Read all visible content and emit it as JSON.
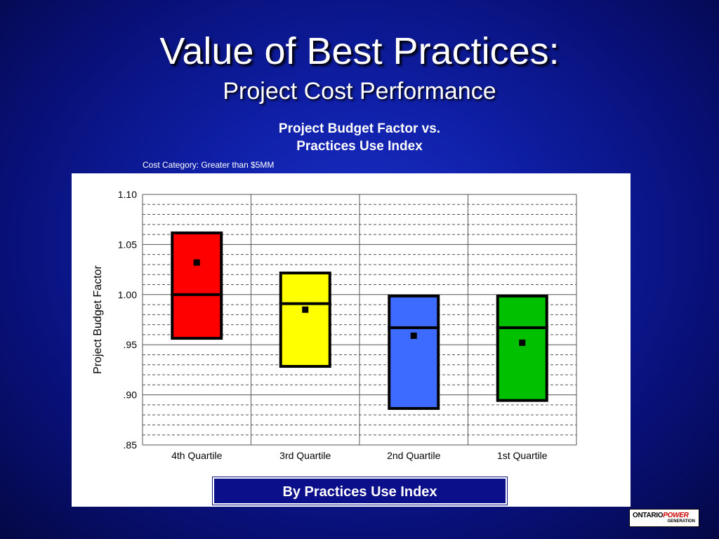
{
  "slide": {
    "title": "Value of Best Practices:",
    "subtitle": "Project Cost Performance",
    "chart_title_line1": "Project Budget Factor vs.",
    "chart_title_line2": "Practices Use Index",
    "cost_category": "Cost Category: Greater than $5MM",
    "xaxis_banner": "By Practices Use Index",
    "logo": {
      "word1": "ONTARIO",
      "word2": "POWER",
      "word3": "GENERATION",
      "color_power": "#cc0000"
    }
  },
  "chart_data": {
    "type": "boxplot",
    "title": "Project Budget Factor vs. Practices Use Index",
    "subtitle": "Cost Category: Greater than $5MM",
    "xlabel": "By Practices Use Index",
    "ylabel": "Project Budget Factor",
    "ylim": [
      0.85,
      1.1
    ],
    "yticks": [
      {
        "value": 1.1,
        "label": "1.10"
      },
      {
        "value": 1.05,
        "label": "1.05"
      },
      {
        "value": 1.0,
        "label": "1.00"
      },
      {
        "value": 0.95,
        "label": ".95"
      },
      {
        "value": 0.9,
        "label": ".90"
      },
      {
        "value": 0.85,
        "label": ".85"
      }
    ],
    "minor_grid_step": 0.01,
    "grid": true,
    "categories": [
      "4th Quartile",
      "3rd Quartile",
      "2nd Quartile",
      "1st Quartile"
    ],
    "boxes": [
      {
        "category": "4th Quartile",
        "low": 0.955,
        "high": 1.063,
        "median": 1.0,
        "mean": 1.032,
        "color": "#ff0000"
      },
      {
        "category": "3rd Quartile",
        "low": 0.927,
        "high": 1.023,
        "median": 0.991,
        "mean": 0.985,
        "color": "#ffff00"
      },
      {
        "category": "2nd Quartile",
        "low": 0.885,
        "high": 1.0,
        "median": 0.967,
        "mean": 0.959,
        "color": "#3d6bff"
      },
      {
        "category": "1st Quartile",
        "low": 0.893,
        "high": 1.0,
        "median": 0.967,
        "mean": 0.952,
        "color": "#00c000"
      }
    ]
  }
}
